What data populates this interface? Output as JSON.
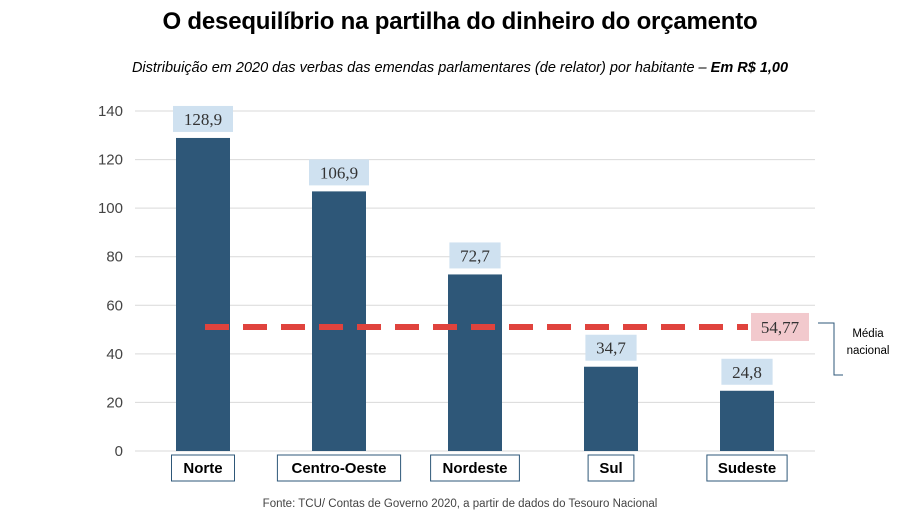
{
  "chart_data": {
    "type": "bar",
    "title": "O desequilíbrio na partilha do dinheiro do orçamento",
    "subtitle": "Distribuição em 2020 das verbas das emendas parlamentares (de relator) por habitante –",
    "subtitle_unit": "Em R$ 1,00",
    "categories": [
      "Norte",
      "Centro-Oeste",
      "Nordeste",
      "Sul",
      "Sudeste"
    ],
    "values": [
      128.9,
      106.9,
      72.7,
      34.7,
      24.8
    ],
    "value_labels": [
      "128,9",
      "106,9",
      "72,7",
      "34,7",
      "24,8"
    ],
    "ylim": [
      0,
      140
    ],
    "yticks": [
      0,
      20,
      40,
      60,
      80,
      100,
      120,
      140
    ],
    "grid": true,
    "reference_line": {
      "value": 54.77,
      "label": "54,77",
      "name_line1": "Média",
      "name_line2": "nacional"
    },
    "source": "Fonte: TCU/ Contas de Governo 2020, a partir de dados do Tesouro Nacional",
    "colors": {
      "bar": "#2e5778",
      "value_box": "#cfe1f0",
      "mean_line": "#e0433d",
      "mean_box": "#f2c9cd",
      "grid": "#d9d9d9",
      "category_border": "#2e5778"
    }
  }
}
